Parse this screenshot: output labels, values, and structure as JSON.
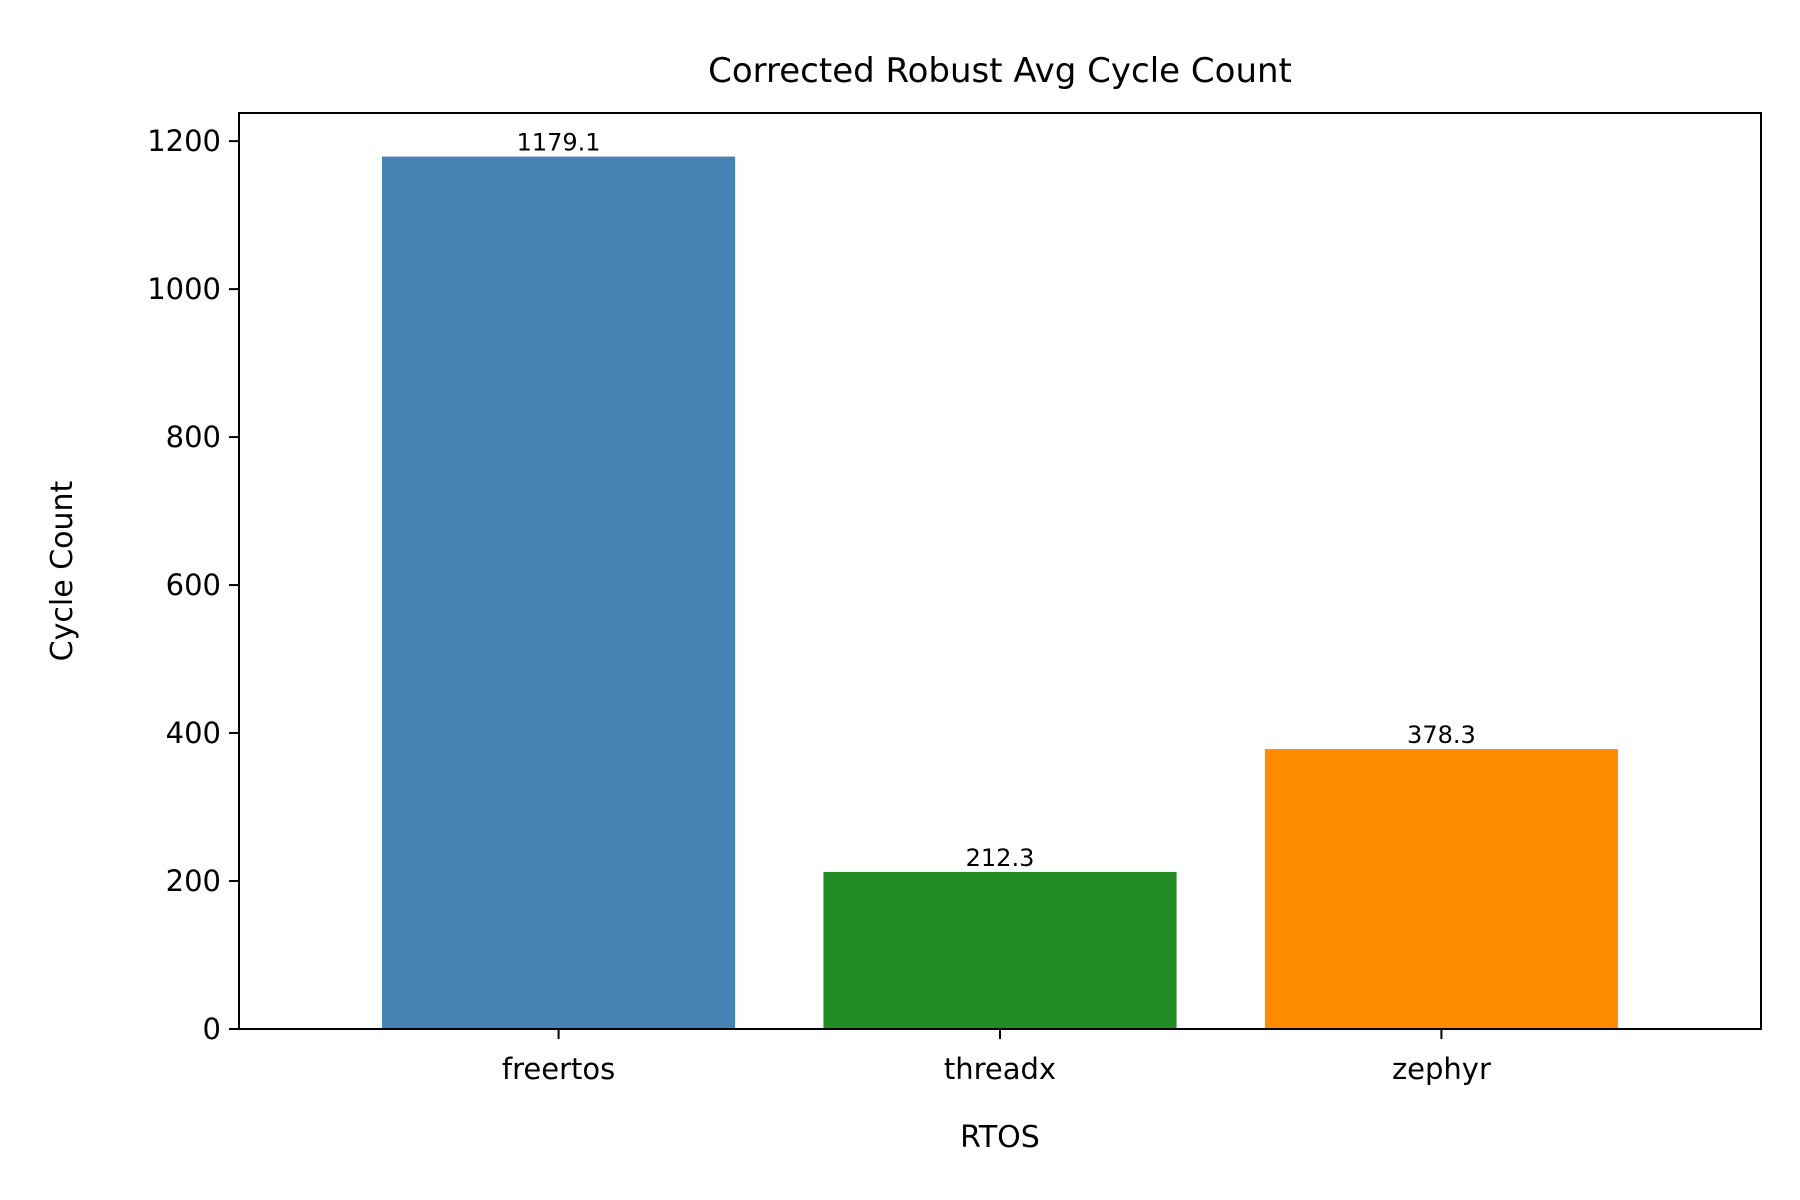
{
  "chart_data": {
    "type": "bar",
    "title": "Corrected Robust Avg Cycle Count",
    "xlabel": "RTOS",
    "ylabel": "Cycle Count",
    "categories": [
      "freertos",
      "threadx",
      "zephyr"
    ],
    "values": [
      1179.1,
      212.3,
      378.3
    ],
    "value_labels": [
      "1179.1",
      "212.3",
      "378.3"
    ],
    "colors": [
      "#4682b4",
      "#228b22",
      "#ff8c00"
    ],
    "ylim": [
      0,
      1238
    ],
    "yticks": [
      0,
      200,
      400,
      600,
      800,
      1000,
      1200
    ],
    "grid": false,
    "legend": "none"
  }
}
